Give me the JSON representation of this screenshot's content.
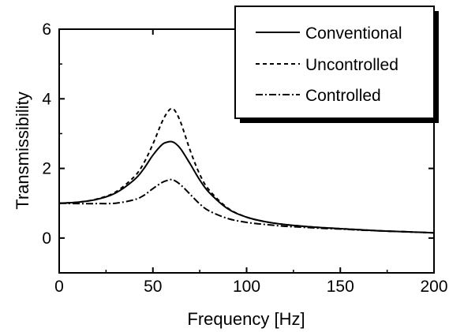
{
  "chart_data": {
    "type": "line",
    "title": "",
    "xlabel": "Frequency [Hz]",
    "ylabel": "Transmissibility",
    "xlim": [
      0,
      200
    ],
    "ylim": [
      -1,
      6
    ],
    "x_ticks": [
      0,
      50,
      100,
      150,
      200
    ],
    "y_ticks": [
      0,
      2,
      4,
      6
    ],
    "grid": false,
    "legend_position": "top-right",
    "series": [
      {
        "name": "Conventional",
        "style": "solid",
        "x": [
          0,
          10,
          20,
          30,
          40,
          45,
          50,
          55,
          58,
          60,
          62,
          65,
          70,
          75,
          80,
          90,
          100,
          110,
          120,
          130,
          140,
          150,
          160,
          170,
          180,
          190,
          200
        ],
        "y": [
          1.0,
          1.03,
          1.11,
          1.29,
          1.67,
          1.98,
          2.38,
          2.69,
          2.76,
          2.77,
          2.72,
          2.55,
          2.12,
          1.67,
          1.31,
          0.84,
          0.6,
          0.47,
          0.39,
          0.34,
          0.3,
          0.27,
          0.24,
          0.21,
          0.19,
          0.17,
          0.15
        ]
      },
      {
        "name": "Uncontrolled",
        "style": "dashed",
        "x": [
          0,
          10,
          20,
          30,
          40,
          45,
          50,
          55,
          58,
          60,
          62,
          65,
          70,
          75,
          80,
          90,
          100,
          110,
          120,
          130,
          140,
          150,
          160,
          170,
          180,
          190,
          200
        ],
        "y": [
          1.0,
          1.03,
          1.12,
          1.32,
          1.76,
          2.14,
          2.7,
          3.35,
          3.63,
          3.72,
          3.64,
          3.3,
          2.5,
          1.83,
          1.38,
          0.86,
          0.6,
          0.47,
          0.39,
          0.34,
          0.3,
          0.27,
          0.24,
          0.21,
          0.19,
          0.17,
          0.15
        ]
      },
      {
        "name": "Controlled",
        "style": "dash-dot",
        "x": [
          0,
          10,
          20,
          30,
          40,
          45,
          50,
          55,
          58,
          60,
          62,
          65,
          70,
          75,
          80,
          90,
          100,
          110,
          120,
          130,
          140,
          150,
          160,
          170,
          180,
          190,
          200
        ],
        "y": [
          1.0,
          0.99,
          0.99,
          1.0,
          1.1,
          1.22,
          1.42,
          1.6,
          1.66,
          1.68,
          1.64,
          1.52,
          1.25,
          0.98,
          0.78,
          0.56,
          0.45,
          0.39,
          0.34,
          0.31,
          0.28,
          0.26,
          0.23,
          0.21,
          0.19,
          0.17,
          0.15
        ]
      }
    ]
  }
}
